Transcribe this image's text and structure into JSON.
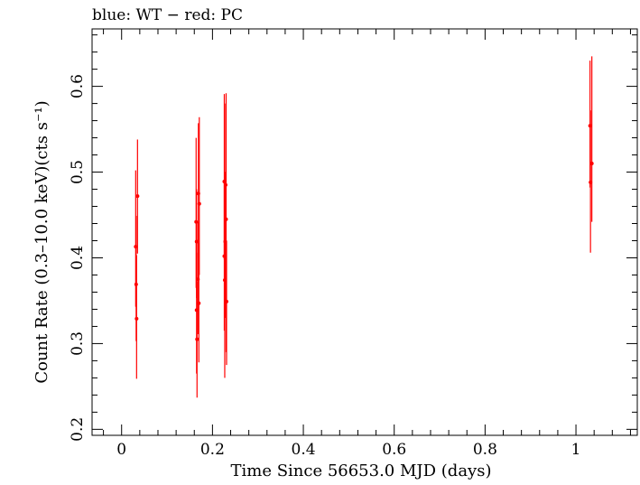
{
  "chart_data": {
    "type": "scatter",
    "title": "blue: WT − red: PC",
    "xlabel": "Time Since 56653.0 MJD (days)",
    "ylabel": "Count Rate (0.3–10.0 keV)(cts s⁻¹)",
    "xlim": [
      -0.065,
      1.135
    ],
    "ylim": [
      0.193,
      0.667
    ],
    "x_ticks": [
      0,
      0.2,
      0.4,
      0.6,
      0.8,
      1
    ],
    "x_tick_labels": [
      "0",
      "0.2",
      "0.4",
      "0.6",
      "0.8",
      "1"
    ],
    "y_ticks": [
      0.2,
      0.3,
      0.4,
      0.5,
      0.6
    ],
    "y_tick_labels": [
      "0.2",
      "0.3",
      "0.4",
      "0.5",
      "0.6"
    ],
    "grid": false,
    "series": [
      {
        "color": "#ff0000",
        "points": [
          {
            "x": 0.031,
            "y": 0.413,
            "ylo": 0.343,
            "yhi": 0.502
          },
          {
            "x": 0.032,
            "y": 0.369,
            "ylo": 0.303,
            "yhi": 0.449
          },
          {
            "x": 0.033,
            "y": 0.329,
            "ylo": 0.259,
            "yhi": 0.403
          },
          {
            "x": 0.035,
            "y": 0.472,
            "ylo": 0.405,
            "yhi": 0.538
          },
          {
            "x": 0.164,
            "y": 0.442,
            "ylo": 0.365,
            "yhi": 0.54
          },
          {
            "x": 0.165,
            "y": 0.419,
            "ylo": 0.353,
            "yhi": 0.48
          },
          {
            "x": 0.165,
            "y": 0.339,
            "ylo": 0.265,
            "yhi": 0.406
          },
          {
            "x": 0.166,
            "y": 0.305,
            "ylo": 0.237,
            "yhi": 0.372
          },
          {
            "x": 0.168,
            "y": 0.375,
            "ylo": 0.311,
            "yhi": 0.442
          },
          {
            "x": 0.169,
            "y": 0.475,
            "ylo": 0.4,
            "yhi": 0.557
          },
          {
            "x": 0.17,
            "y": 0.347,
            "ylo": 0.278,
            "yhi": 0.417
          },
          {
            "x": 0.171,
            "y": 0.463,
            "ylo": 0.38,
            "yhi": 0.564
          },
          {
            "x": 0.226,
            "y": 0.489,
            "ylo": 0.398,
            "yhi": 0.591
          },
          {
            "x": 0.226,
            "y": 0.402,
            "ylo": 0.315,
            "yhi": 0.49
          },
          {
            "x": 0.227,
            "y": 0.374,
            "ylo": 0.26,
            "yhi": 0.47
          },
          {
            "x": 0.228,
            "y": 0.419,
            "ylo": 0.33,
            "yhi": 0.5
          },
          {
            "x": 0.229,
            "y": 0.485,
            "ylo": 0.4,
            "yhi": 0.58
          },
          {
            "x": 0.23,
            "y": 0.445,
            "ylo": 0.29,
            "yhi": 0.592
          },
          {
            "x": 0.231,
            "y": 0.349,
            "ylo": 0.275,
            "yhi": 0.42
          },
          {
            "x": 1.031,
            "y": 0.554,
            "ylo": 0.482,
            "yhi": 0.63
          },
          {
            "x": 1.032,
            "y": 0.488,
            "ylo": 0.406,
            "yhi": 0.572
          },
          {
            "x": 1.035,
            "y": 0.51,
            "ylo": 0.442,
            "yhi": 0.635
          }
        ]
      }
    ]
  }
}
